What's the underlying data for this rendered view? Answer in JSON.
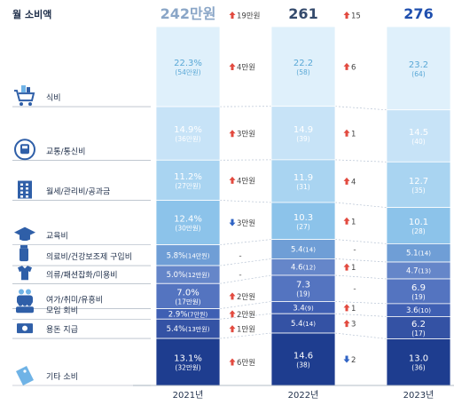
{
  "title": "월 소비액",
  "chart_data": {
    "type": "bar",
    "stacked": true,
    "years": [
      "2021년",
      "2022년",
      "2023년"
    ],
    "totals": [
      "242만원",
      "261",
      "276"
    ],
    "total_changes": [
      {
        "dir": "up",
        "text": "19만원"
      },
      {
        "dir": "up",
        "text": "15"
      }
    ],
    "categories": [
      {
        "label": "식비",
        "icon": "shopping-cart-icon",
        "values": [
          {
            "main": "22.3%",
            "sub": "(54만원)",
            "pct": 22.3
          },
          {
            "main": "22.2",
            "sub": "(58)",
            "pct": 22.2
          },
          {
            "main": "23.2",
            "sub": "(64)",
            "pct": 23.2
          }
        ],
        "changes": [
          {
            "dir": "up",
            "text": "4만원"
          },
          {
            "dir": "up",
            "text": "6"
          }
        ]
      },
      {
        "label": "교통/통신비",
        "icon": "train-icon",
        "values": [
          {
            "main": "14.9%",
            "sub": "(36만원)",
            "pct": 14.9
          },
          {
            "main": "14.9",
            "sub": "(39)",
            "pct": 14.9
          },
          {
            "main": "14.5",
            "sub": "(40)",
            "pct": 14.5
          }
        ],
        "changes": [
          {
            "dir": "up",
            "text": "3만원"
          },
          {
            "dir": "up",
            "text": "1"
          }
        ]
      },
      {
        "label": "월세/관리비/공과금",
        "icon": "building-icon",
        "values": [
          {
            "main": "11.2%",
            "sub": "(27만원)",
            "pct": 11.2
          },
          {
            "main": "11.9",
            "sub": "(31)",
            "pct": 11.9
          },
          {
            "main": "12.7",
            "sub": "(35)",
            "pct": 12.7
          }
        ],
        "changes": [
          {
            "dir": "up",
            "text": "4만원"
          },
          {
            "dir": "up",
            "text": "4"
          }
        ]
      },
      {
        "label": "교육비",
        "icon": "graduation-cap-icon",
        "values": [
          {
            "main": "12.4%",
            "sub": "(30만원)",
            "pct": 12.4
          },
          {
            "main": "10.3",
            "sub": "(27)",
            "pct": 10.3
          },
          {
            "main": "10.1",
            "sub": "(28)",
            "pct": 10.1
          }
        ],
        "changes": [
          {
            "dir": "down",
            "text": "3만원"
          },
          {
            "dir": "up",
            "text": "1"
          }
        ]
      },
      {
        "label": "의료비/건강보조제 구입비",
        "icon": "medicine-icon",
        "values": [
          {
            "main": "5.8%",
            "sub": "(14만원)",
            "pct": 5.8
          },
          {
            "main": "5.4",
            "sub": "(14)",
            "pct": 5.4
          },
          {
            "main": "5.1",
            "sub": "(14)",
            "pct": 5.1
          }
        ],
        "changes": [
          {
            "dir": "none",
            "text": "-"
          },
          {
            "dir": "none",
            "text": "-"
          }
        ]
      },
      {
        "label": "의류/패션잡화/미용비",
        "icon": "clothing-icon",
        "values": [
          {
            "main": "5.0%",
            "sub": "(12만원)",
            "pct": 5.0
          },
          {
            "main": "4.6",
            "sub": "(12)",
            "pct": 4.6
          },
          {
            "main": "4.7",
            "sub": "(13)",
            "pct": 4.7
          }
        ],
        "changes": [
          {
            "dir": "none",
            "text": "-"
          },
          {
            "dir": "up",
            "text": "1"
          }
        ]
      },
      {
        "label": "여가/취미/유흥비",
        "icon": "leisure-icon",
        "values": [
          {
            "main": "7.0%",
            "sub": "(17만원)",
            "pct": 7.0
          },
          {
            "main": "7.3",
            "sub": "(19)",
            "pct": 7.3
          },
          {
            "main": "6.9",
            "sub": "(19)",
            "pct": 6.9
          }
        ],
        "changes": [
          {
            "dir": "up",
            "text": "2만원"
          },
          {
            "dir": "none",
            "text": "-"
          }
        ]
      },
      {
        "label": "모임 회비",
        "icon": "group-icon",
        "values": [
          {
            "main": "2.9%",
            "sub": "(7만원)",
            "pct": 2.9
          },
          {
            "main": "3.4",
            "sub": "(9)",
            "pct": 3.4
          },
          {
            "main": "3.6",
            "sub": "(10)",
            "pct": 3.6
          }
        ],
        "changes": [
          {
            "dir": "up",
            "text": "2만원"
          },
          {
            "dir": "up",
            "text": "1"
          }
        ]
      },
      {
        "label": "용돈 지급",
        "icon": "money-icon",
        "values": [
          {
            "main": "5.4%",
            "sub": "(13만원)",
            "pct": 5.4
          },
          {
            "main": "5.4",
            "sub": "(14)",
            "pct": 5.4
          },
          {
            "main": "6.2",
            "sub": "(17)",
            "pct": 6.2
          }
        ],
        "changes": [
          {
            "dir": "up",
            "text": "1만원"
          },
          {
            "dir": "up",
            "text": "3"
          }
        ]
      },
      {
        "label": "기타 소비",
        "icon": "price-tag-icon",
        "values": [
          {
            "main": "13.1%",
            "sub": "(32만원)",
            "pct": 13.1
          },
          {
            "main": "14.6",
            "sub": "(38)",
            "pct": 14.6
          },
          {
            "main": "13.0",
            "sub": "(36)",
            "pct": 13.0
          }
        ],
        "changes": [
          {
            "dir": "up",
            "text": "6만원"
          },
          {
            "dir": "down",
            "text": "2"
          }
        ]
      }
    ]
  }
}
